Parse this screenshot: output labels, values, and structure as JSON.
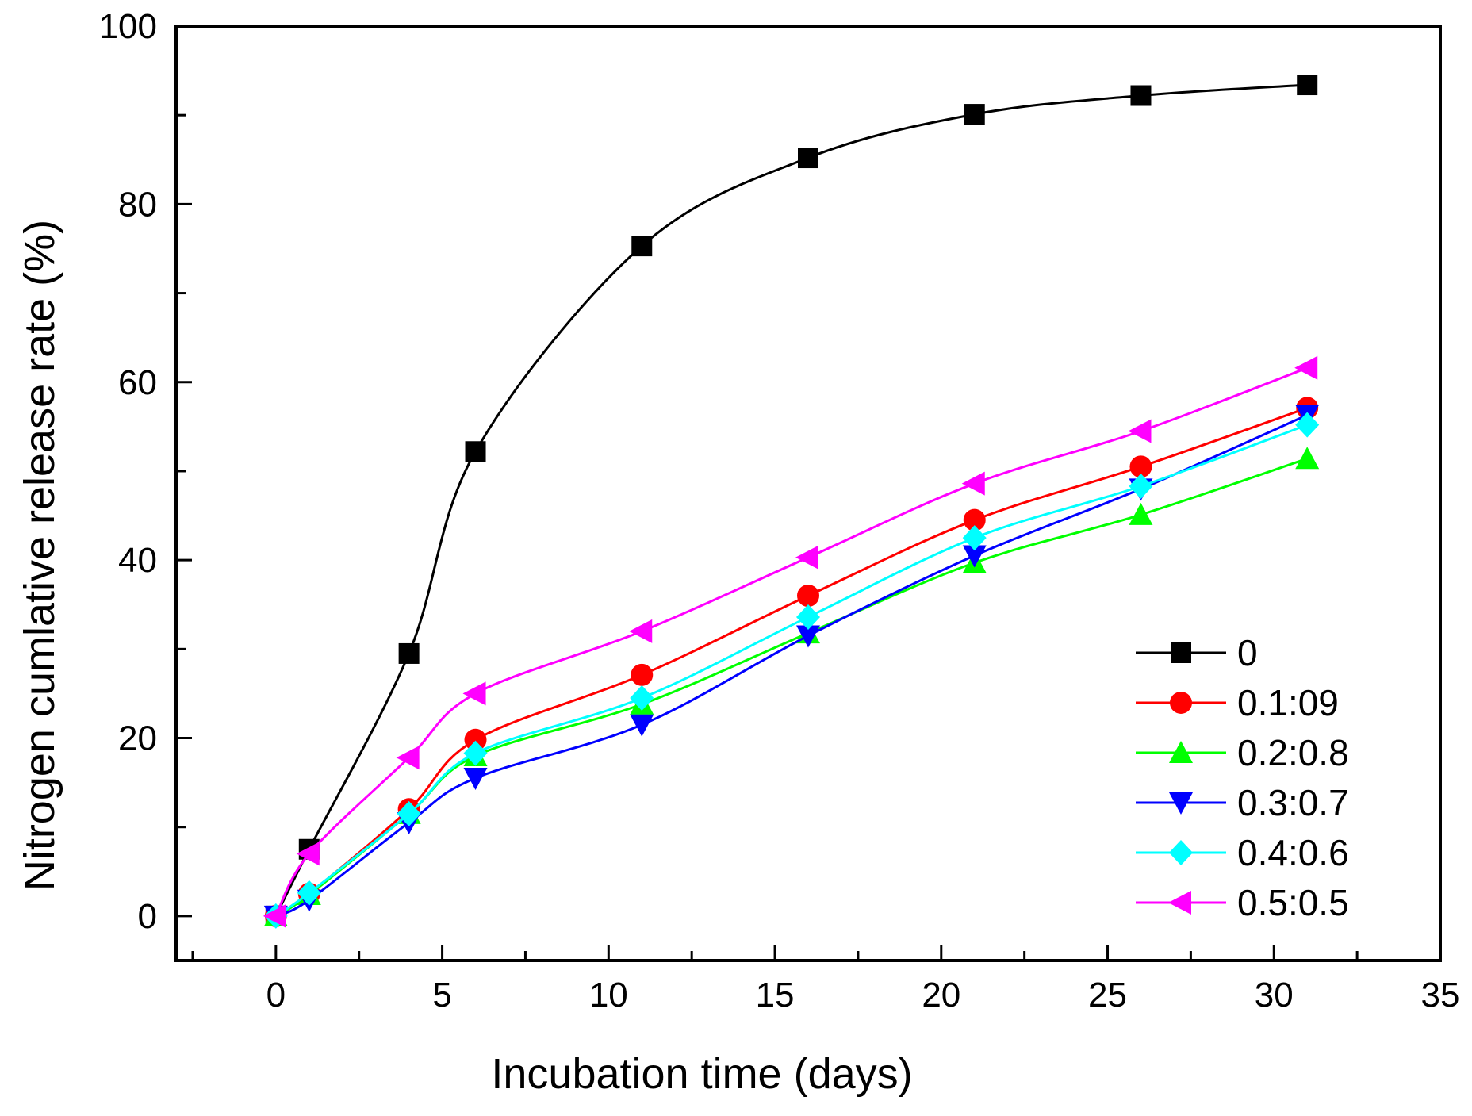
{
  "chart_data": {
    "type": "line",
    "title": "",
    "xlabel": "Incubation time (days)",
    "ylabel": "Nitrogen cumlative release rate (%)",
    "xlim": [
      -3,
      35
    ],
    "ylim": [
      -5,
      100
    ],
    "xticks": [
      0,
      5,
      10,
      15,
      20,
      25,
      30,
      35
    ],
    "yticks": [
      0,
      20,
      40,
      60,
      80,
      100
    ],
    "grid": false,
    "legend_position": "bottom-right",
    "x": [
      0,
      1,
      4,
      6,
      11,
      16,
      21,
      26,
      31
    ],
    "series": [
      {
        "name": "0",
        "marker": "square",
        "color": "#000000",
        "values": [
          0,
          7.5,
          29.5,
          52.2,
          75.3,
          85.2,
          90.1,
          92.2,
          93.4
        ]
      },
      {
        "name": "0.1:09",
        "marker": "circle",
        "color": "#ff0000",
        "values": [
          0,
          2.5,
          12.0,
          19.8,
          27.1,
          36.0,
          44.5,
          50.5,
          57.1
        ]
      },
      {
        "name": "0.2:0.8",
        "marker": "triangle-up",
        "color": "#00ff00",
        "values": [
          0,
          2.4,
          11.5,
          18.0,
          23.8,
          31.8,
          39.7,
          45.1,
          51.4
        ]
      },
      {
        "name": "0.3:0.7",
        "marker": "triangle-down",
        "color": "#0000ff",
        "values": [
          0,
          1.8,
          10.5,
          15.5,
          21.5,
          31.5,
          40.5,
          48.0,
          56.3
        ]
      },
      {
        "name": "0.4:0.6",
        "marker": "diamond",
        "color": "#00ffff",
        "values": [
          0,
          2.6,
          11.5,
          18.3,
          24.5,
          33.6,
          42.5,
          48.3,
          55.2
        ]
      },
      {
        "name": "0.5:0.5",
        "marker": "triangle-left",
        "color": "#ff00ff",
        "values": [
          0,
          7.0,
          17.8,
          25.0,
          32.0,
          40.3,
          48.6,
          54.5,
          61.6
        ]
      }
    ]
  }
}
